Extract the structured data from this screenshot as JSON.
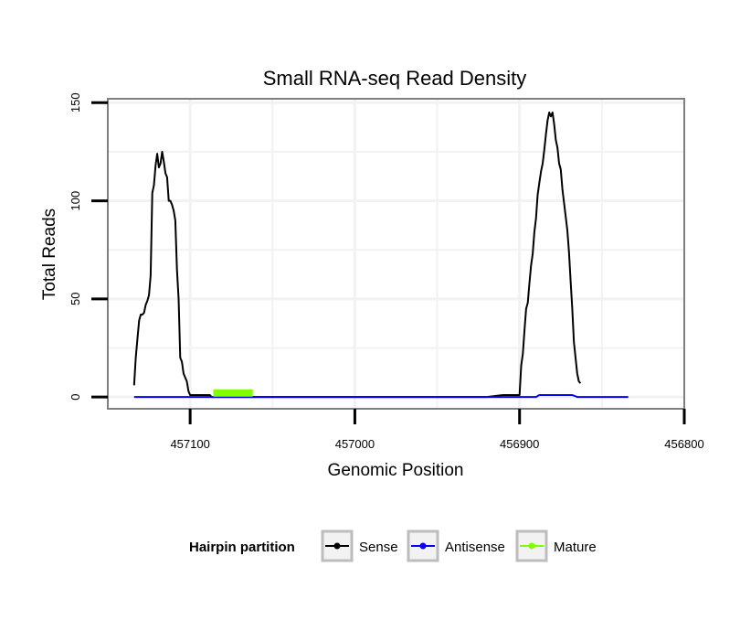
{
  "chart_data": {
    "type": "line",
    "title": "Small RNA-seq Read Density",
    "xlabel": "Genomic Position",
    "ylabel": "Total Reads",
    "xlim": [
      457150,
      456800
    ],
    "x_reversed": true,
    "ylim": [
      -6,
      152
    ],
    "x_ticks": [
      457100,
      457000,
      456900,
      456800
    ],
    "x_tick_labels": [
      "457100",
      "457000",
      "456900",
      "456800"
    ],
    "y_ticks": [
      0,
      50,
      100,
      150
    ],
    "y_tick_labels": [
      "0",
      "50",
      "100",
      "150"
    ],
    "grid": true,
    "legend": {
      "title": "Hairpin partition",
      "position": "bottom",
      "entries": [
        "Sense",
        "Antisense",
        "Mature"
      ]
    },
    "series": [
      {
        "name": "Sense",
        "color": "#000000",
        "x": [
          457134,
          457133,
          457132,
          457131,
          457130,
          457129,
          457128,
          457127,
          457126,
          457125,
          457124,
          457123,
          457122,
          457121,
          457120,
          457119,
          457118,
          457117,
          457116,
          457115,
          457114,
          457113,
          457112,
          457111,
          457110,
          457109,
          457108,
          457107,
          457106,
          457105,
          457104,
          457103,
          457102,
          457101,
          457100,
          457099,
          457098,
          457097,
          457096,
          457095,
          457094,
          457093,
          457092,
          457091,
          457090,
          457089,
          457088,
          457087,
          457086,
          457085,
          457080,
          456920,
          456910,
          456909,
          456908,
          456907,
          456906,
          456905,
          456904,
          456903,
          456902,
          456901,
          456900,
          456899,
          456898,
          456897,
          456896,
          456895,
          456894,
          456893,
          456892,
          456891,
          456890,
          456889,
          456888,
          456887,
          456886,
          456885,
          456884,
          456883,
          456882,
          456881,
          456880,
          456879,
          456878,
          456877,
          456876,
          456875,
          456874,
          456873,
          456872,
          456871,
          456870,
          456869,
          456868,
          456867,
          456866,
          456865,
          456864,
          456863
        ],
        "values": [
          6,
          20,
          30,
          39,
          42,
          42,
          43,
          47,
          49,
          52,
          62,
          104,
          108,
          118,
          124,
          117,
          119,
          125,
          120,
          114,
          112,
          100,
          100,
          98,
          95,
          90,
          65,
          50,
          20,
          18,
          12,
          10,
          8,
          3,
          1,
          1,
          1,
          1,
          1,
          1,
          1,
          1,
          1,
          1,
          1,
          1,
          1,
          0,
          0,
          0,
          0,
          0,
          1,
          1,
          1,
          1,
          1,
          1,
          1,
          1,
          1,
          1,
          1,
          16,
          22,
          34,
          45,
          48,
          58,
          67,
          73,
          84,
          91,
          103,
          109,
          115,
          119,
          126,
          134,
          141,
          145,
          143,
          145,
          139,
          131,
          127,
          119,
          116,
          106,
          99,
          92,
          85,
          74,
          59,
          45,
          28,
          20,
          12,
          8,
          7
        ]
      },
      {
        "name": "Antisense",
        "color": "#0000ff",
        "x": [
          457134,
          457100,
          457000,
          456900,
          456890,
          456888,
          456868,
          456865,
          456850,
          456834
        ],
        "values": [
          0,
          0,
          0,
          0,
          0,
          1,
          1,
          0,
          0,
          0
        ]
      },
      {
        "name": "Mature",
        "color": "#7fff00",
        "x": [
          457086,
          457062
        ],
        "values": [
          2,
          2
        ]
      }
    ]
  }
}
